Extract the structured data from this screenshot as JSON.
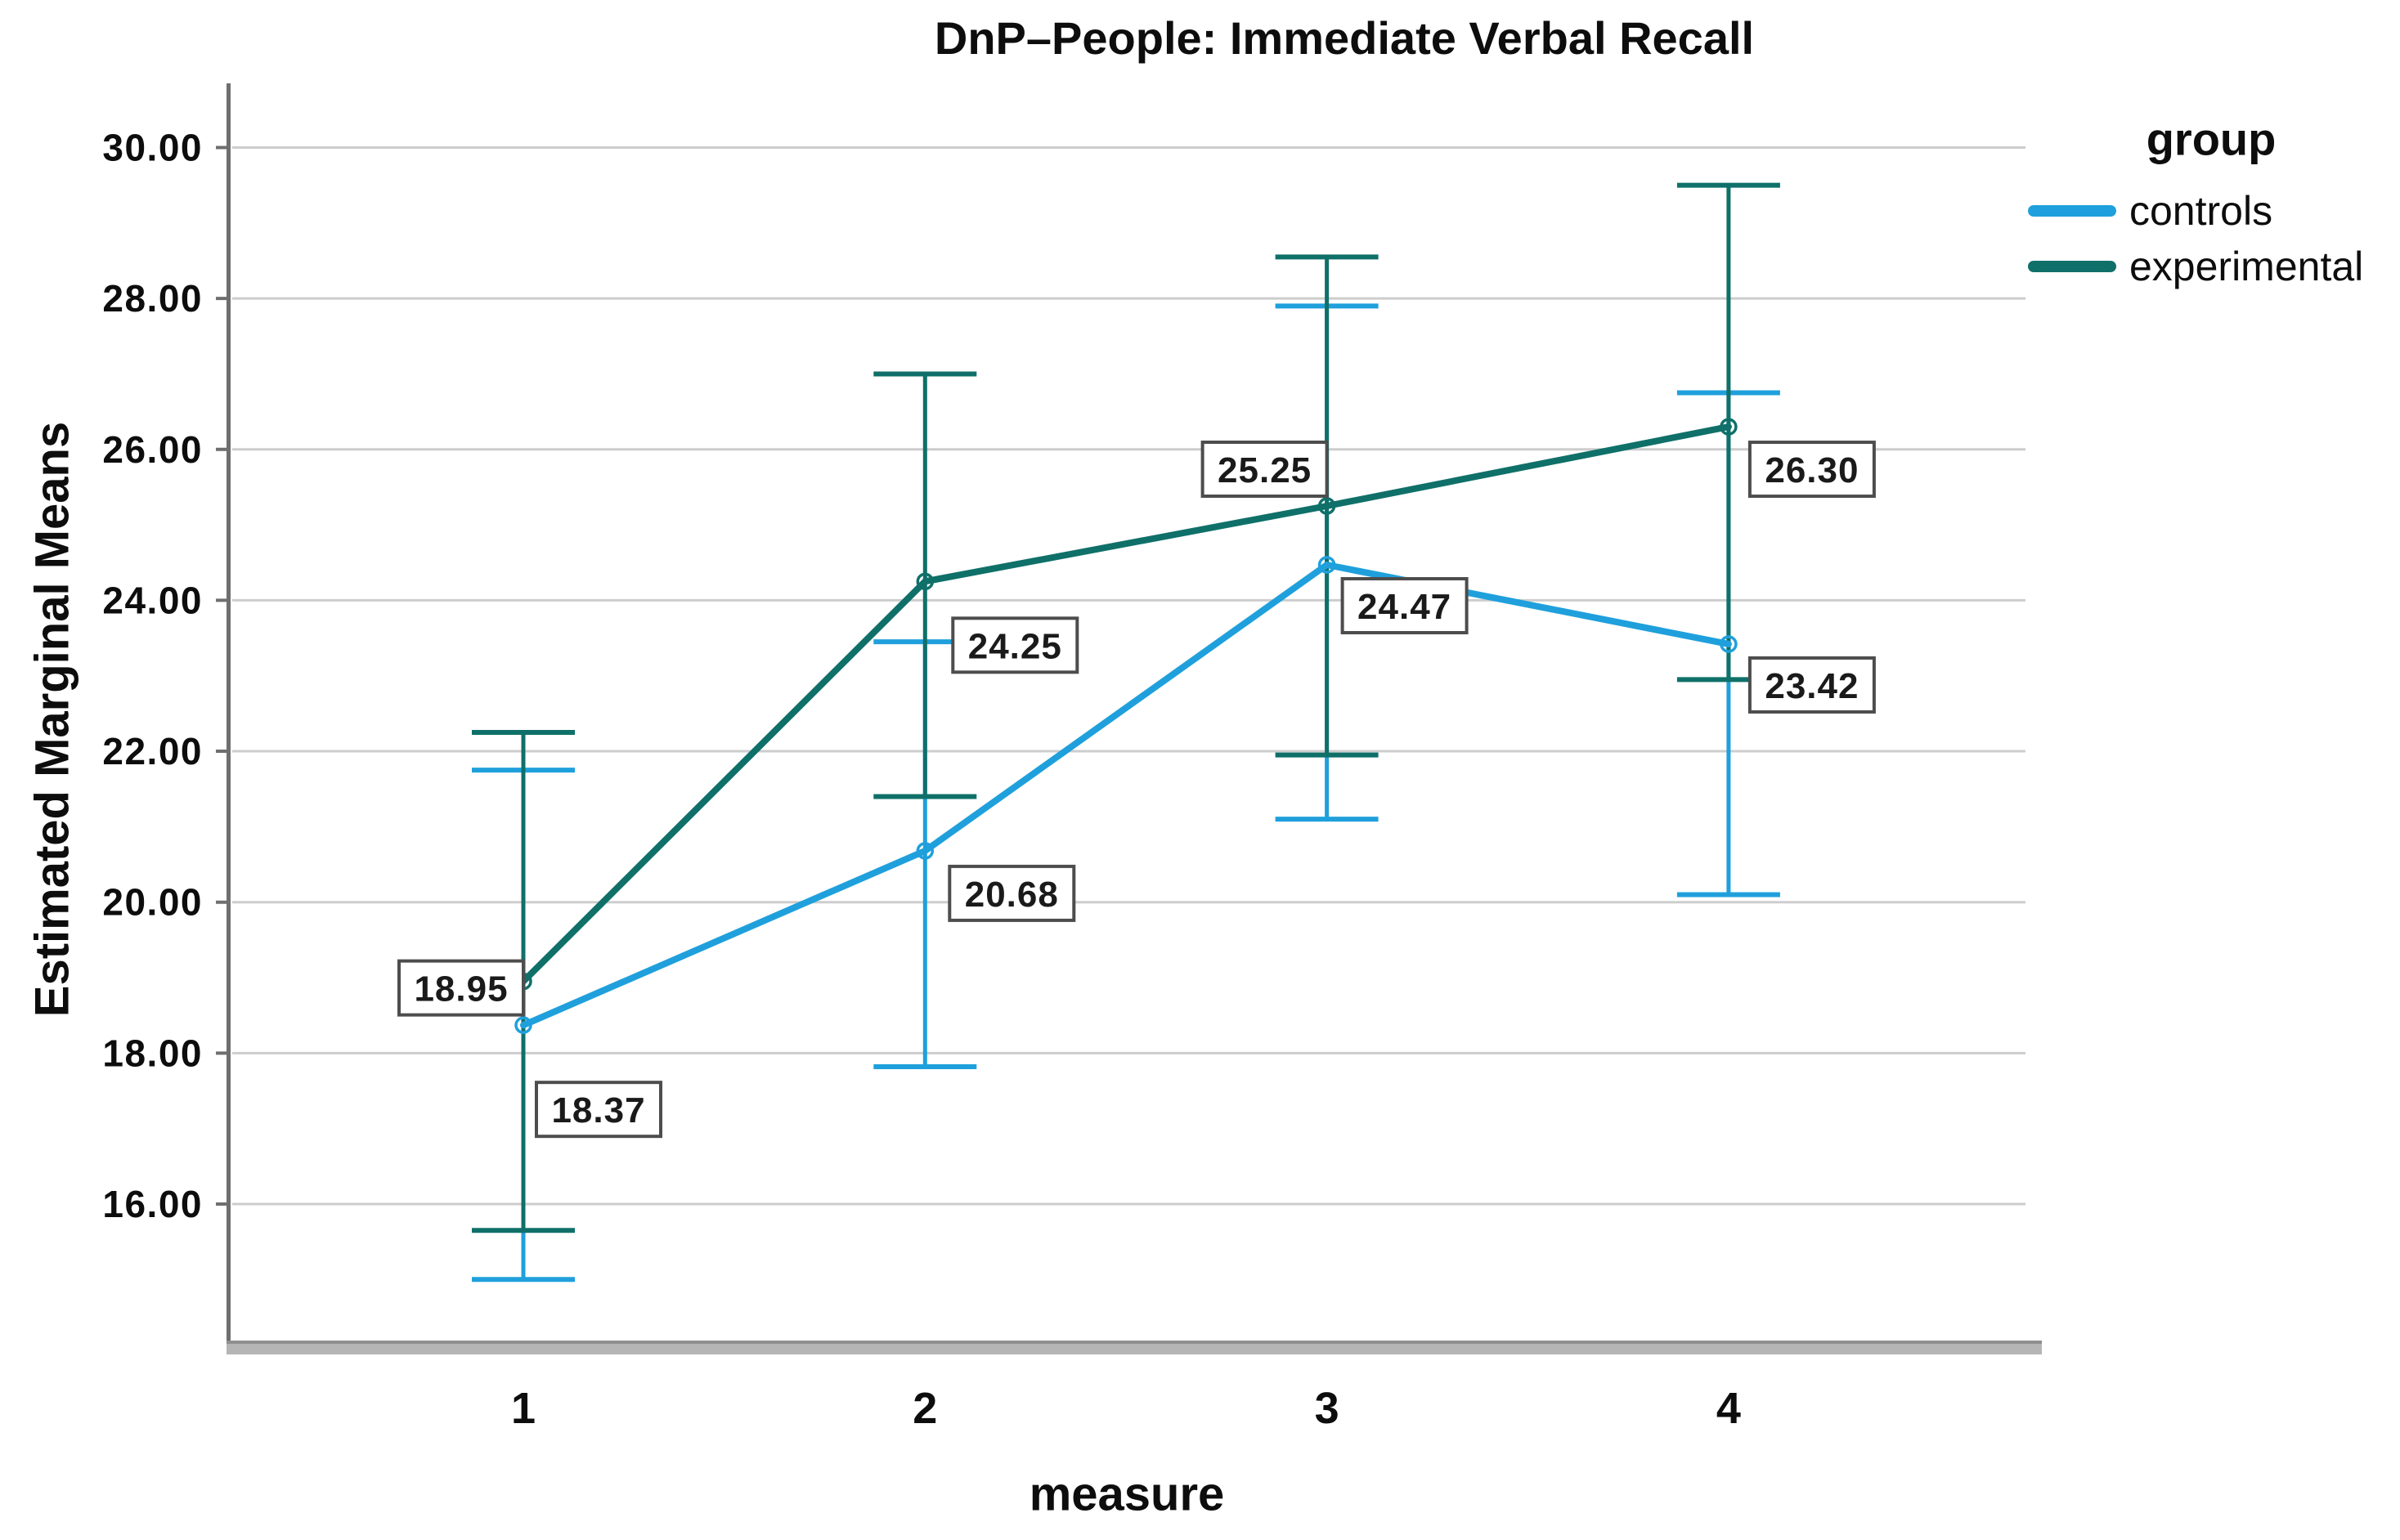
{
  "chart_data": {
    "type": "line",
    "title": "DnP–People: Immediate Verbal Recall",
    "xlabel": "measure",
    "ylabel": "Estimated Marginal Means",
    "categories": [
      "1",
      "2",
      "3",
      "4"
    ],
    "y_ticks": [
      "30.00",
      "28.00",
      "26.00",
      "24.00",
      "22.00",
      "20.00",
      "18.00",
      "16.00"
    ],
    "ylim": [
      14.18,
      30.85
    ],
    "grid": "horizontal gridlines at each y tick",
    "legend": {
      "title": "group",
      "position": "top-right"
    },
    "series": [
      {
        "name": "controls",
        "color": "#1FA0DC",
        "means": [
          18.37,
          20.68,
          24.47,
          23.42
        ],
        "ci_low": [
          15.0,
          17.82,
          21.1,
          20.1
        ],
        "ci_high": [
          21.75,
          23.45,
          27.9,
          26.75
        ],
        "labels": [
          {
            "text": "18.37",
            "dx": 92,
            "dy": 103
          },
          {
            "text": "20.68",
            "dx": 106,
            "dy": 52
          },
          {
            "text": "24.47",
            "dx": 95,
            "dy": 50
          },
          {
            "text": "23.42",
            "dx": 102,
            "dy": 50
          }
        ]
      },
      {
        "name": "experimental",
        "color": "#0F7069",
        "means": [
          18.95,
          24.25,
          25.25,
          26.3
        ],
        "ci_low": [
          15.65,
          21.4,
          21.95,
          22.95
        ],
        "ci_high": [
          22.25,
          27.0,
          28.55,
          29.5
        ],
        "labels": [
          {
            "text": "18.95",
            "dx": -76,
            "dy": 8
          },
          {
            "text": "24.25",
            "dx": 110,
            "dy": 78
          },
          {
            "text": "25.25",
            "dx": -76,
            "dy": -45
          },
          {
            "text": "26.30",
            "dx": 102,
            "dy": 52
          }
        ]
      }
    ],
    "colors": {
      "grid": "#CDCDCD",
      "axis": "#6F6F6F",
      "axis_band": "#B5B5B5",
      "axis_band_edge": "#8F8F8F",
      "label_box_border": "#4D4D4D",
      "label_box_fill": "#FFFFFF",
      "text": "#0D0D0D"
    }
  }
}
